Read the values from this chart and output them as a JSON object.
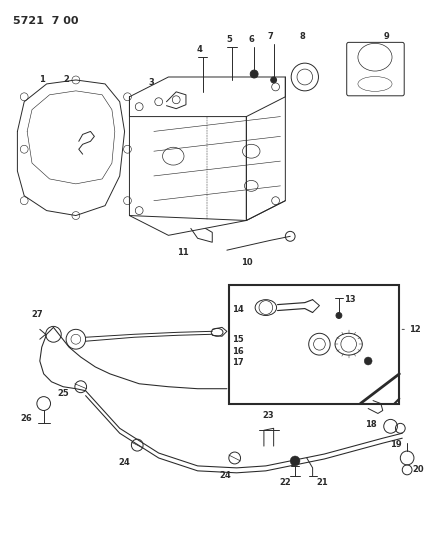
{
  "title": "5721  7 00",
  "bg_color": "#ffffff",
  "line_color": "#2a2a2a",
  "fig_width": 4.28,
  "fig_height": 5.33,
  "dpi": 100
}
